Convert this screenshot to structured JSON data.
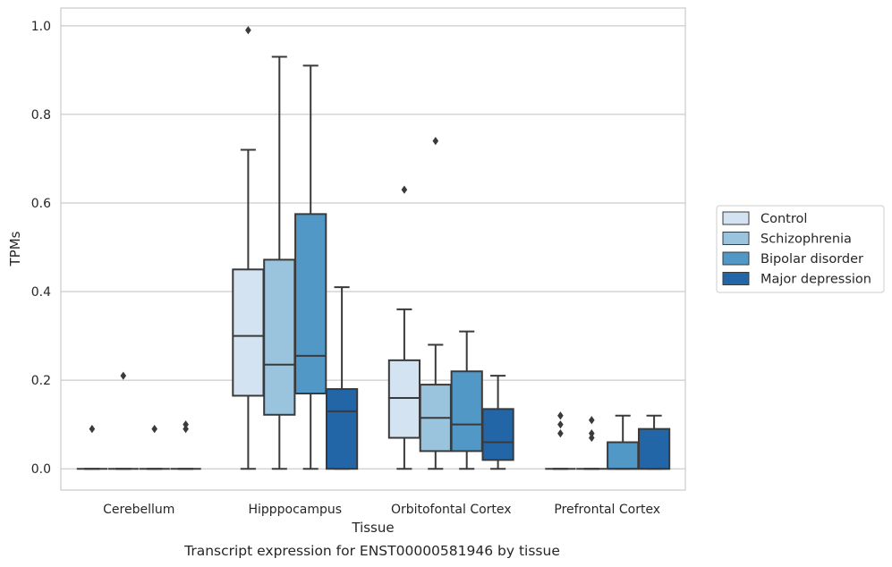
{
  "chart_data": {
    "type": "box",
    "xlabel": "Tissue",
    "ylabel": "TPMs",
    "caption": "Transcript expression for ENST00000581946 by tissue",
    "ylim": [
      -0.048,
      1.04
    ],
    "yticks": [
      "0.0",
      "0.2",
      "0.4",
      "0.6",
      "0.8",
      "1.0"
    ],
    "grid": "horizontal",
    "legend_position": "right",
    "categories": [
      "Cerebellum",
      "Hipppocampus",
      "Orbitofontal Cortex",
      "Prefrontal Cortex"
    ],
    "series": [
      {
        "name": "Control",
        "color": "#d4e3f1",
        "boxes": [
          {
            "q1": 0,
            "median": 0,
            "q3": 0,
            "whisker_low": 0,
            "whisker_high": 0,
            "outliers": [
              0.09
            ]
          },
          {
            "q1": 0.165,
            "median": 0.3,
            "q3": 0.45,
            "whisker_low": 0,
            "whisker_high": 0.72,
            "outliers": [
              0.99
            ]
          },
          {
            "q1": 0.07,
            "median": 0.16,
            "q3": 0.245,
            "whisker_low": 0,
            "whisker_high": 0.36,
            "outliers": [
              0.63
            ]
          },
          {
            "q1": 0,
            "median": 0,
            "q3": 0,
            "whisker_low": 0,
            "whisker_high": 0,
            "outliers": [
              0.08,
              0.1,
              0.12
            ]
          }
        ]
      },
      {
        "name": "Schizophrenia",
        "color": "#9ac4dd",
        "boxes": [
          {
            "q1": 0,
            "median": 0,
            "q3": 0,
            "whisker_low": 0,
            "whisker_high": 0,
            "outliers": [
              0.21
            ]
          },
          {
            "q1": 0.122,
            "median": 0.235,
            "q3": 0.472,
            "whisker_low": 0,
            "whisker_high": 0.93,
            "outliers": []
          },
          {
            "q1": 0.04,
            "median": 0.115,
            "q3": 0.19,
            "whisker_low": 0,
            "whisker_high": 0.28,
            "outliers": [
              0.74
            ]
          },
          {
            "q1": 0,
            "median": 0,
            "q3": 0,
            "whisker_low": 0,
            "whisker_high": 0,
            "outliers": [
              0.07,
              0.08,
              0.11
            ]
          }
        ]
      },
      {
        "name": "Bipolar disorder",
        "color": "#5198c7",
        "boxes": [
          {
            "q1": 0,
            "median": 0,
            "q3": 0,
            "whisker_low": 0,
            "whisker_high": 0,
            "outliers": [
              0.09
            ]
          },
          {
            "q1": 0.17,
            "median": 0.255,
            "q3": 0.575,
            "whisker_low": 0,
            "whisker_high": 0.91,
            "outliers": []
          },
          {
            "q1": 0.04,
            "median": 0.1,
            "q3": 0.22,
            "whisker_low": 0,
            "whisker_high": 0.31,
            "outliers": []
          },
          {
            "q1": 0,
            "median": 0,
            "q3": 0.06,
            "whisker_low": 0,
            "whisker_high": 0.12,
            "outliers": []
          }
        ]
      },
      {
        "name": "Major depression",
        "color": "#2266a8",
        "boxes": [
          {
            "q1": 0,
            "median": 0,
            "q3": 0,
            "whisker_low": 0,
            "whisker_high": 0,
            "outliers": [
              0.09,
              0.1
            ]
          },
          {
            "q1": 0,
            "median": 0.13,
            "q3": 0.18,
            "whisker_low": 0,
            "whisker_high": 0.41,
            "outliers": []
          },
          {
            "q1": 0.02,
            "median": 0.06,
            "q3": 0.135,
            "whisker_low": 0,
            "whisker_high": 0.21,
            "outliers": []
          },
          {
            "q1": 0,
            "median": 0,
            "q3": 0.09,
            "whisker_low": 0,
            "whisker_high": 0.12,
            "outliers": []
          }
        ]
      }
    ]
  }
}
